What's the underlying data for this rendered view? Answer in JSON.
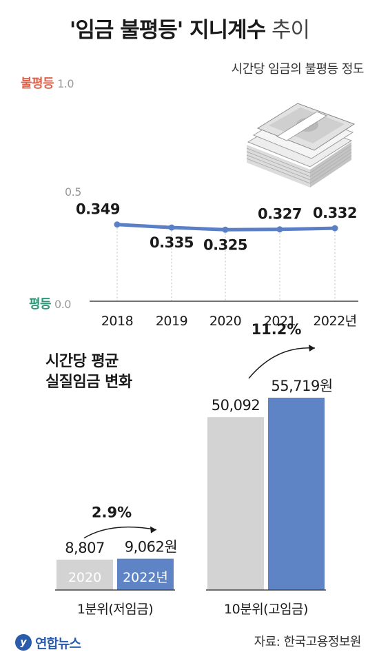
{
  "header": {
    "title_bold": "'임금 불평등' 지니계수",
    "title_light": "추이",
    "subtitle": "시간당 임금의 불평등 정도"
  },
  "line_axis": {
    "top_word": "불평등",
    "top_value": "1.0",
    "mid_value": "0.5",
    "bottom_word": "평등",
    "bottom_value": "0.0"
  },
  "bar_section": {
    "title_line1": "시간당 평균",
    "title_line2": "실질임금 변화"
  },
  "footer": {
    "logo_letter": "y",
    "logo_text": "연합뉴스",
    "source": "자료: 한국고용정보원"
  },
  "colors": {
    "line": "#5b7fc4",
    "bar_2020": "#d3d3d3",
    "bar_2022": "#5e84c6",
    "inequality": "#e0624a",
    "equality": "#2a9a78"
  },
  "icons": [
    "money-stack-icon",
    "arrow-icon"
  ],
  "chart_data": [
    {
      "type": "line",
      "title": "'임금 불평등' 지니계수 추이",
      "subtitle": "시간당 임금의 불평등 정도",
      "x": [
        "2018",
        "2019",
        "2020",
        "2021",
        "2022년"
      ],
      "series": [
        {
          "values": [
            0.349,
            0.335,
            0.325,
            0.327,
            0.332
          ]
        }
      ],
      "labels": [
        "0.349",
        "0.335",
        "0.325",
        "0.327",
        "0.332"
      ],
      "ylim": [
        0,
        1.0
      ],
      "yticks": [
        "0.0",
        "0.5",
        "1.0"
      ]
    },
    {
      "type": "bar",
      "title": "시간당 평균 실질임금 변화",
      "groups": [
        {
          "name": "1분위(저임금)",
          "bars": [
            {
              "label": "2020",
              "value": 8807,
              "value_label": "8,807"
            },
            {
              "label": "2022년",
              "value": 9062,
              "value_label": "9,062원"
            }
          ],
          "change": "2.9%"
        },
        {
          "name": "10분위(고임금)",
          "bars": [
            {
              "label": "2020",
              "value": 50092,
              "value_label": "50,092"
            },
            {
              "label": "2022년",
              "value": 55719,
              "value_label": "55,719원"
            }
          ],
          "change": "11.2%"
        }
      ],
      "ylim": [
        0,
        55719
      ]
    }
  ]
}
